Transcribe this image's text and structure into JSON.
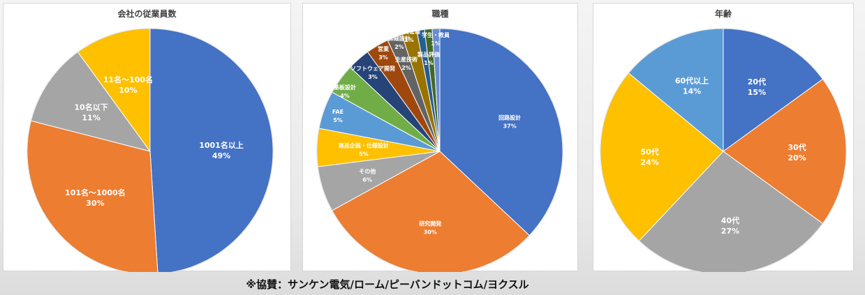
{
  "chart_data": [
    {
      "type": "pie",
      "title": "会社の従業員数",
      "slices": [
        {
          "label": "1001名以上",
          "value": 49,
          "pct": "49%",
          "color": "#4472C4"
        },
        {
          "label": "101名～1000名",
          "value": 30,
          "pct": "30%",
          "color": "#ED7D31"
        },
        {
          "label": "10名以下",
          "value": 11,
          "pct": "11%",
          "color": "#A5A5A5"
        },
        {
          "label": "11名～100名",
          "value": 10,
          "pct": "10%",
          "color": "#FFC000"
        }
      ]
    },
    {
      "type": "pie",
      "title": "職種",
      "slices": [
        {
          "label": "回路設計",
          "value": 37,
          "pct": "37%",
          "color": "#4472C4"
        },
        {
          "label": "研究開発",
          "value": 30,
          "pct": "30%",
          "color": "#ED7D31"
        },
        {
          "label": "その他",
          "value": 6,
          "pct": "6%",
          "color": "#A5A5A5"
        },
        {
          "label": "商品企画・仕様設計",
          "value": 5,
          "pct": "5%",
          "color": "#FFC000"
        },
        {
          "label": "FAE",
          "value": 5,
          "pct": "5%",
          "color": "#5B9BD5"
        },
        {
          "label": "基板設計",
          "value": 4,
          "pct": "4%",
          "color": "#70AD47"
        },
        {
          "label": "ソフトウェア開発",
          "value": 3,
          "pct": "3%",
          "color": "#264478"
        },
        {
          "label": "営業",
          "value": 3,
          "pct": "3%",
          "color": "#9E480E"
        },
        {
          "label": "詳細設計",
          "value": 2,
          "pct": "2%",
          "color": "#636363"
        },
        {
          "label": "生産技術",
          "value": 2,
          "pct": "2%",
          "color": "#997300"
        },
        {
          "label": "品質管理",
          "value": 1,
          "pct": "1%",
          "color": "#255E91"
        },
        {
          "label": "学生・教員",
          "value": 1,
          "pct": "1%",
          "color": "#43682B"
        },
        {
          "label": "製品評価",
          "value": 1,
          "pct": "1%",
          "color": "#698ED0"
        }
      ]
    },
    {
      "type": "pie",
      "title": "年齢",
      "slices": [
        {
          "label": "20代",
          "value": 15,
          "pct": "15%",
          "color": "#4472C4"
        },
        {
          "label": "30代",
          "value": 20,
          "pct": "20%",
          "color": "#ED7D31"
        },
        {
          "label": "40代",
          "value": 27,
          "pct": "27%",
          "color": "#A5A5A5"
        },
        {
          "label": "50代",
          "value": 24,
          "pct": "24%",
          "color": "#FFC000"
        },
        {
          "label": "60代以上",
          "value": 14,
          "pct": "14%",
          "color": "#5B9BD5"
        }
      ]
    }
  ],
  "footer": "※協賛：サンケン電気/ローム/ピーバンドットコム/ヨクスル"
}
